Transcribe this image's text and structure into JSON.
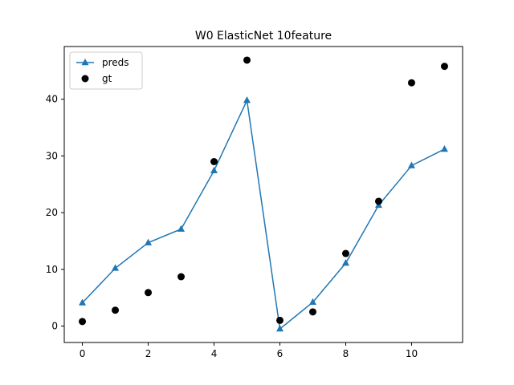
{
  "chart_data": {
    "type": "line",
    "title": "W0 ElasticNet 10feature",
    "xlabel": "",
    "ylabel": "",
    "xlim": [
      -0.55,
      11.55
    ],
    "ylim": [
      -2.9,
      49.3
    ],
    "xticks": [
      0,
      2,
      4,
      6,
      8,
      10
    ],
    "yticks": [
      0,
      10,
      20,
      30,
      40
    ],
    "grid": false,
    "legend_position": "top-left",
    "series": [
      {
        "name": "preds",
        "kind": "line",
        "marker": "triangle",
        "color": "#1f77b4",
        "x": [
          0,
          1,
          2,
          3,
          4,
          5,
          6,
          7,
          8,
          9,
          10,
          11
        ],
        "y": [
          4.1,
          10.2,
          14.7,
          17.1,
          27.4,
          39.8,
          -0.5,
          4.2,
          11.1,
          21.3,
          28.3,
          31.2
        ]
      },
      {
        "name": "gt",
        "kind": "scatter",
        "marker": "circle",
        "color": "#000000",
        "x": [
          0,
          1,
          2,
          3,
          4,
          5,
          6,
          7,
          8,
          9,
          10,
          11
        ],
        "y": [
          0.8,
          2.8,
          5.9,
          8.7,
          29.0,
          46.9,
          1.0,
          2.5,
          12.8,
          22.0,
          42.9,
          45.8
        ]
      }
    ]
  }
}
